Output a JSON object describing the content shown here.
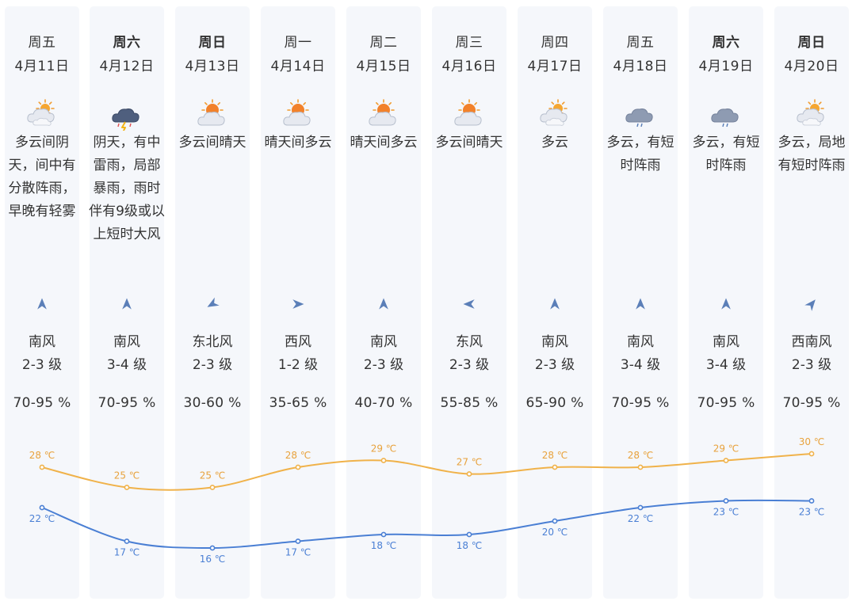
{
  "days": [
    {
      "day": "周五",
      "date": "4月11日",
      "weekend": false,
      "icon": "partly-cloudy-icon",
      "desc": "多云间阴天，间中有分散阵雨，早晚有轻雾",
      "wind_dir": "南风",
      "wind_level": "2-3 级",
      "wind_icon": "wind-arrow-north-icon",
      "humidity": "70-95 %",
      "high": "28 ℃",
      "low": "22 ℃"
    },
    {
      "day": "周六",
      "date": "4月12日",
      "weekend": true,
      "icon": "thunderstorm-icon",
      "desc": "阴天，有中雷雨，局部暴雨，雨时伴有9级或以上短时大风",
      "wind_dir": "南风",
      "wind_level": "3-4 级",
      "wind_icon": "wind-arrow-north-icon",
      "humidity": "70-95 %",
      "high": "25 ℃",
      "low": "17 ℃"
    },
    {
      "day": "周日",
      "date": "4月13日",
      "weekend": true,
      "icon": "sunny-partly-cloudy-icon",
      "desc": "多云间晴天",
      "wind_dir": "东北风",
      "wind_level": "2-3 级",
      "wind_icon": "wind-arrow-southwest-icon",
      "humidity": "30-60 %",
      "high": "25 ℃",
      "low": "16 ℃"
    },
    {
      "day": "周一",
      "date": "4月14日",
      "weekend": false,
      "icon": "sunny-partly-cloudy-icon",
      "desc": "晴天间多云",
      "wind_dir": "西风",
      "wind_level": "1-2 级",
      "wind_icon": "wind-arrow-east-icon",
      "humidity": "35-65 %",
      "high": "28 ℃",
      "low": "17 ℃"
    },
    {
      "day": "周二",
      "date": "4月15日",
      "weekend": false,
      "icon": "sunny-partly-cloudy-icon",
      "desc": "晴天间多云",
      "wind_dir": "南风",
      "wind_level": "2-3 级",
      "wind_icon": "wind-arrow-north-icon",
      "humidity": "40-70 %",
      "high": "29 ℃",
      "low": "18 ℃"
    },
    {
      "day": "周三",
      "date": "4月16日",
      "weekend": false,
      "icon": "sunny-partly-cloudy-icon",
      "desc": "多云间晴天",
      "wind_dir": "东风",
      "wind_level": "2-3 级",
      "wind_icon": "wind-arrow-west-icon",
      "humidity": "55-85 %",
      "high": "27 ℃",
      "low": "18 ℃"
    },
    {
      "day": "周四",
      "date": "4月17日",
      "weekend": false,
      "icon": "cloudy-icon",
      "desc": "多云",
      "wind_dir": "南风",
      "wind_level": "2-3 级",
      "wind_icon": "wind-arrow-north-icon",
      "humidity": "65-90 %",
      "high": "28 ℃",
      "low": "20 ℃"
    },
    {
      "day": "周五",
      "date": "4月18日",
      "weekend": false,
      "icon": "shower-icon",
      "desc": "多云，有短时阵雨",
      "wind_dir": "南风",
      "wind_level": "3-4 级",
      "wind_icon": "wind-arrow-north-icon",
      "humidity": "70-95 %",
      "high": "28 ℃",
      "low": "22 ℃"
    },
    {
      "day": "周六",
      "date": "4月19日",
      "weekend": true,
      "icon": "shower-icon",
      "desc": "多云，有短时阵雨",
      "wind_dir": "南风",
      "wind_level": "3-4 级",
      "wind_icon": "wind-arrow-north-icon",
      "humidity": "70-95 %",
      "high": "29 ℃",
      "low": "23 ℃"
    },
    {
      "day": "周日",
      "date": "4月20日",
      "weekend": true,
      "icon": "partly-cloudy-icon",
      "desc": "多云，局地有短时阵雨",
      "wind_dir": "西南风",
      "wind_level": "2-3 级",
      "wind_icon": "wind-arrow-northeast-icon",
      "humidity": "70-95 %",
      "high": "30 ℃",
      "low": "23 ℃"
    }
  ],
  "colors": {
    "high_line": "#f0b24a",
    "low_line": "#4a7fd4",
    "high_text": "#e8a23c",
    "low_text": "#4a7fd4",
    "column_bg": "#f5f7fb",
    "arrow": "#5b7fb8"
  },
  "chart_data": {
    "type": "line",
    "x": [
      "4月11日",
      "4月12日",
      "4月13日",
      "4月14日",
      "4月15日",
      "4月16日",
      "4月17日",
      "4月18日",
      "4月19日",
      "4月20日"
    ],
    "series": [
      {
        "values": [
          28,
          25,
          25,
          28,
          29,
          27,
          28,
          28,
          29,
          30
        ]
      },
      {
        "values": [
          22,
          17,
          16,
          17,
          18,
          18,
          20,
          22,
          23,
          23
        ]
      }
    ],
    "unit": "℃"
  }
}
